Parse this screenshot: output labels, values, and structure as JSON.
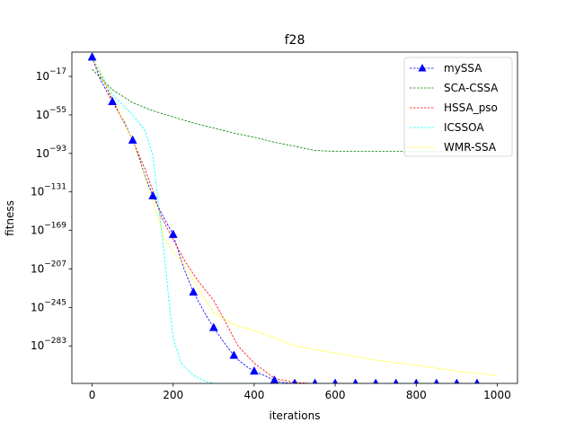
{
  "chart_data": {
    "type": "line",
    "title": "f28",
    "xlabel": "iterations",
    "ylabel": "fitness",
    "xlim": [
      -50,
      1050
    ],
    "ylim_exponent": [
      -320,
      7
    ],
    "y_scale": "log",
    "x_ticks": [
      0,
      200,
      400,
      600,
      800,
      1000
    ],
    "x_tick_labels": [
      "0",
      "200",
      "400",
      "600",
      "800",
      "1000"
    ],
    "y_tick_exponents": [
      -17,
      -55,
      -93,
      -131,
      -169,
      -207,
      -245,
      -283
    ],
    "y_tick_base": "10",
    "y_tick_sup": [
      "−17",
      "−55",
      "−93",
      "−131",
      "−169",
      "−207",
      "−245",
      "−283"
    ],
    "grid": false,
    "legend_position": "top-right",
    "series": [
      {
        "name": "mySSA",
        "color": "#0000ff",
        "style": "dashed",
        "marker": "triangle",
        "marker_x": [
          0,
          50,
          100,
          150,
          200,
          250,
          300,
          350,
          400,
          450,
          500,
          550,
          600,
          650,
          700,
          750,
          800,
          850,
          900,
          950
        ],
        "x": [
          0,
          20,
          50,
          80,
          100,
          115,
          130,
          150,
          175,
          200,
          225,
          250,
          280,
          300,
          330,
          355,
          380,
          400,
          430,
          450,
          470,
          500,
          1000
        ],
        "y_exp": [
          2,
          -20,
          -42,
          -62,
          -80,
          -96,
          -115,
          -135,
          -155,
          -173,
          -205,
          -230,
          -252,
          -265,
          -282,
          -295,
          -303,
          -308,
          -313,
          -317,
          -319,
          -320,
          -320
        ]
      },
      {
        "name": "SCA-CSSA",
        "color": "#008000",
        "style": "dashed",
        "x": [
          0,
          50,
          100,
          150,
          200,
          250,
          300,
          350,
          400,
          450,
          500,
          550,
          600,
          700,
          800,
          900,
          1000
        ],
        "y_exp": [
          -10,
          -30,
          -43,
          -51,
          -57,
          -63,
          -68,
          -73,
          -77,
          -82,
          -86,
          -90,
          -91,
          -91,
          -91,
          -91,
          -90
        ]
      },
      {
        "name": "HSSA_pso",
        "color": "#ff0000",
        "style": "dashed",
        "x": [
          0,
          50,
          100,
          130,
          150,
          170,
          200,
          230,
          260,
          300,
          330,
          360,
          400,
          450,
          500,
          550,
          600,
          700,
          800,
          900,
          1000
        ],
        "y_exp": [
          2,
          -40,
          -80,
          -108,
          -130,
          -155,
          -178,
          -200,
          -218,
          -238,
          -260,
          -283,
          -300,
          -315,
          -319,
          -320,
          -320,
          -320,
          -320,
          -320,
          -320
        ]
      },
      {
        "name": "ICSSOA",
        "color": "#00ffff",
        "style": "dashed",
        "x": [
          0,
          50,
          100,
          130,
          150,
          160,
          170,
          180,
          190,
          200,
          220,
          250,
          280,
          300,
          1000
        ],
        "y_exp": [
          2,
          -35,
          -55,
          -70,
          -95,
          -130,
          -165,
          -200,
          -240,
          -275,
          -300,
          -312,
          -318,
          -320,
          -320
        ]
      },
      {
        "name": "WMR-SSA",
        "color": "#ffff00",
        "style": "dashed",
        "x": [
          0,
          50,
          100,
          150,
          180,
          200,
          230,
          260,
          300,
          350,
          400,
          450,
          500,
          600,
          700,
          800,
          900,
          1000
        ],
        "y_exp": [
          2,
          -38,
          -80,
          -140,
          -178,
          -190,
          -205,
          -225,
          -250,
          -262,
          -268,
          -275,
          -283,
          -290,
          -297,
          -302,
          -308,
          -312
        ]
      }
    ]
  }
}
